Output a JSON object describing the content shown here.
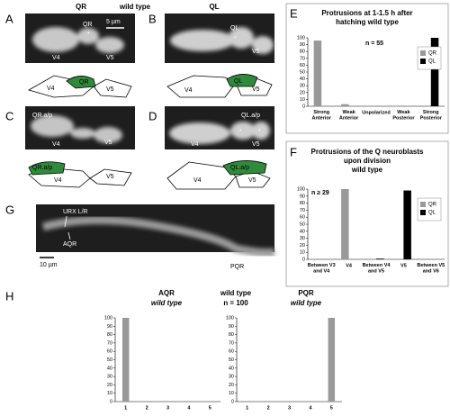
{
  "figure": {
    "header": {
      "left": "QR",
      "center": "wild type",
      "right": "QL"
    },
    "panel_letters": [
      "A",
      "B",
      "C",
      "D",
      "E",
      "F",
      "G",
      "H"
    ],
    "micrographs": {
      "A": {
        "image": [
          "QR",
          "5 µm",
          "*",
          "V4",
          "V5"
        ],
        "cartoon": [
          "V4",
          "QR",
          "V5"
        ]
      },
      "B": {
        "image": [
          "QL",
          "*",
          "V5"
        ],
        "cartoon": [
          "V4",
          "QL",
          "V5"
        ]
      },
      "C": {
        "image": [
          "QR.a/p",
          "V4",
          "V5"
        ],
        "cartoon": [
          "QR.a/p",
          "V4",
          "V5"
        ]
      },
      "D": {
        "image": [
          "QL.a/p",
          "*",
          "*",
          "V4",
          "V5"
        ],
        "cartoon": [
          "QL.a/p",
          "V4",
          "V5"
        ]
      },
      "G": {
        "image": [
          "URX L/R",
          "AQR",
          "PQR",
          "10 µm"
        ]
      }
    },
    "panel_h": {
      "title": "wild type",
      "note": "n = 100"
    }
  },
  "chart_data": [
    {
      "type": "bar",
      "title": "Protrusions at 1-1.5 h after hatching wild type",
      "annotation": "n = 55",
      "categories": [
        "Strong Anterior",
        "Weak Anterior",
        "Unpolarized",
        "Weak Posterior",
        "Strong Posterior"
      ],
      "series": [
        {
          "name": "QR",
          "color": "#999999",
          "values": [
            96,
            3,
            0,
            0,
            0
          ]
        },
        {
          "name": "QL",
          "color": "#000000",
          "values": [
            0,
            0,
            0,
            0,
            100
          ]
        }
      ],
      "ylim": [
        0,
        100
      ],
      "yticks": [
        0,
        10,
        20,
        30,
        40,
        50,
        60,
        70,
        80,
        90,
        100
      ],
      "legend": "upper right"
    },
    {
      "type": "bar",
      "title": "Protrusions of the Q neuroblasts upon division wild type",
      "annotation": "n ≥ 29",
      "categories": [
        "Between V3 and V4",
        "V4",
        "Between V4 and V5",
        "V5",
        "Between V5 and V6"
      ],
      "series": [
        {
          "name": "QR",
          "color": "#999999",
          "values": [
            0,
            100,
            0,
            0,
            0
          ]
        },
        {
          "name": "QL",
          "color": "#000000",
          "values": [
            0,
            0,
            1,
            98,
            0
          ]
        }
      ],
      "ylim": [
        0,
        100
      ],
      "yticks": [
        0,
        10,
        20,
        30,
        40,
        50,
        60,
        70,
        80,
        90,
        100
      ],
      "legend": "upper right"
    },
    {
      "type": "bar",
      "title": "AQR",
      "subtitle": "wild type",
      "categories": [
        "1",
        "2",
        "3",
        "4",
        "5"
      ],
      "values": [
        100,
        0,
        0,
        0,
        0
      ],
      "color": "#999999",
      "ylim": [
        0,
        100
      ],
      "yticks": [
        0,
        10,
        20,
        30,
        40,
        50,
        60,
        70,
        80,
        90,
        100
      ]
    },
    {
      "type": "bar",
      "title": "PQR",
      "subtitle": "wild type",
      "categories": [
        "1",
        "2",
        "3",
        "4",
        "5"
      ],
      "values": [
        0,
        0,
        0,
        0,
        100
      ],
      "color": "#999999",
      "ylim": [
        0,
        100
      ],
      "yticks": [
        0,
        10,
        20,
        30,
        40,
        50,
        60,
        70,
        80,
        90,
        100
      ]
    }
  ]
}
